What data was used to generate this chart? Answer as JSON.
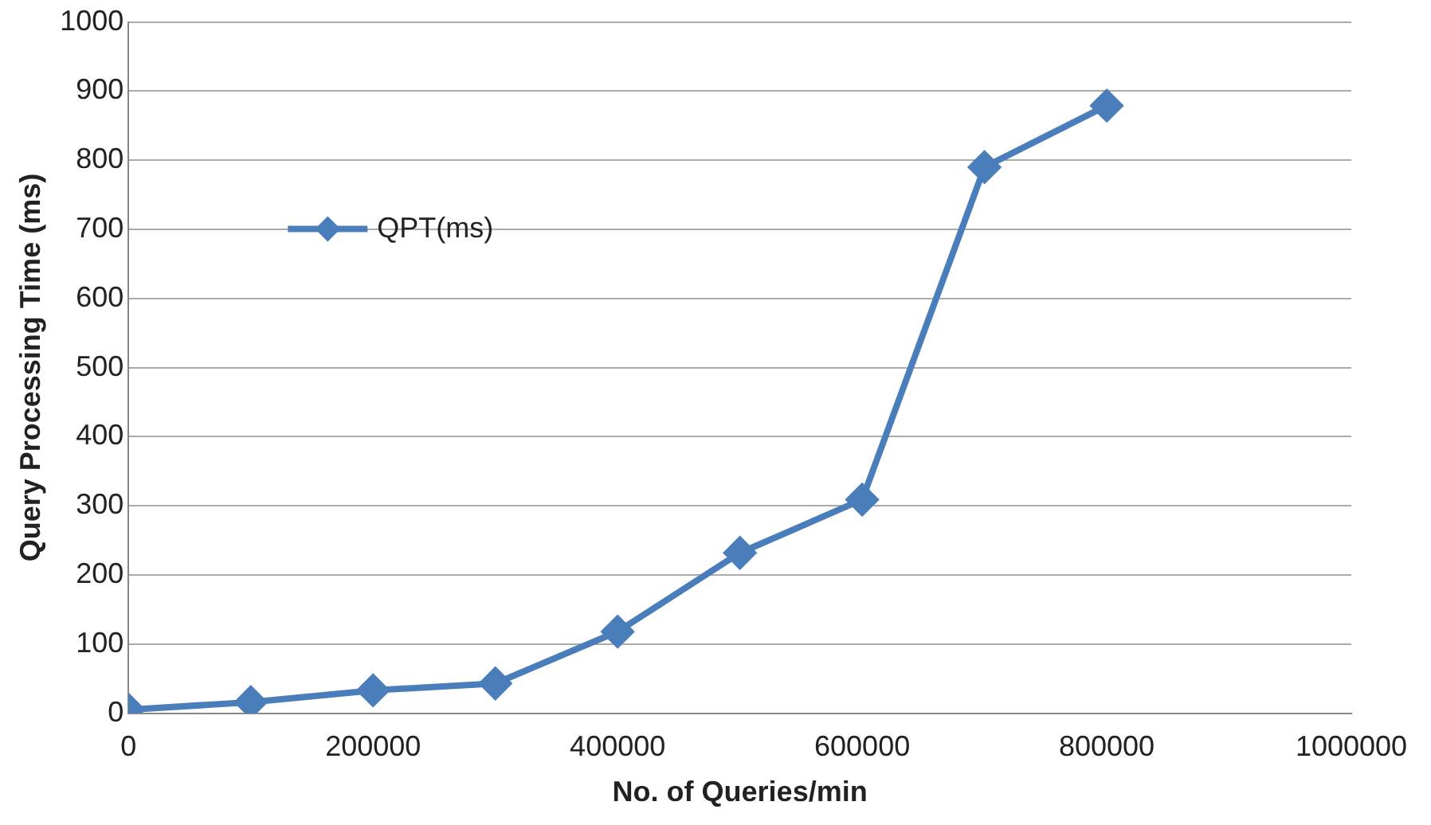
{
  "chart_data": {
    "type": "line",
    "xlabel": "No. of Queries/min",
    "ylabel": "Query Processing Time (ms)",
    "x": [
      0,
      100000,
      200000,
      300000,
      400000,
      500000,
      600000,
      700000,
      800000
    ],
    "series": [
      {
        "name": "QPT(ms)",
        "color": "#4a7ebb",
        "values": [
          5,
          16,
          33,
          43,
          118,
          232,
          309,
          790,
          879
        ]
      }
    ],
    "xlim": [
      0,
      1000000
    ],
    "xticks": [
      0,
      200000,
      400000,
      600000,
      800000,
      1000000
    ],
    "ylim": [
      0,
      1000
    ],
    "yticks": [
      0,
      100,
      200,
      300,
      400,
      500,
      600,
      700,
      800,
      900,
      1000
    ],
    "grid": "y",
    "legend": "top left",
    "marker": "diamond",
    "line_style": "solid"
  }
}
